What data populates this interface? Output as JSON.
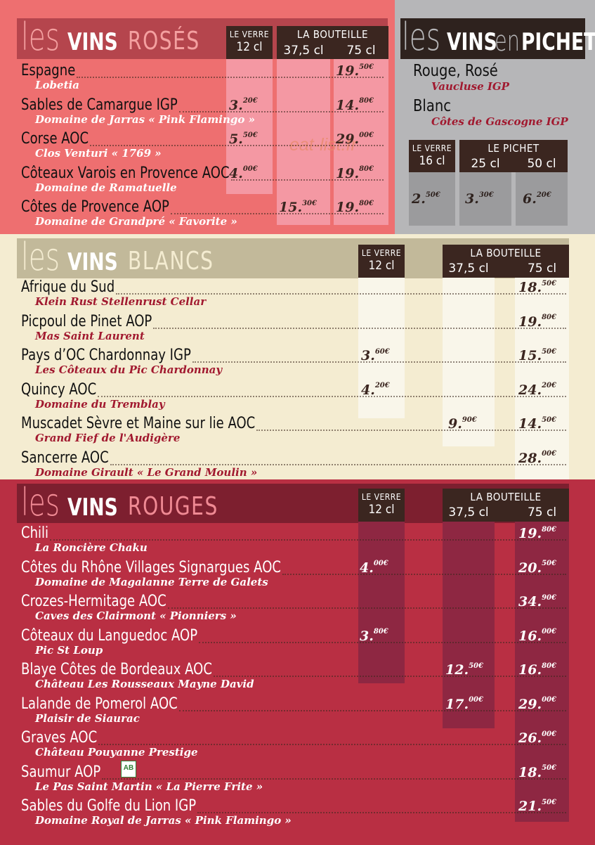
{
  "watermark": "eat-list.fr",
  "roses": {
    "title": {
      "les": "les",
      "mid": "VINS",
      "last": "ROSÉS"
    },
    "headers": {
      "verre": "LE VERRE",
      "verre_size": "12 cl",
      "bouteille": "LA BOUTEILLE",
      "b1": "37,5 cl",
      "b2": "75 cl"
    },
    "items": [
      {
        "name": "Espagne",
        "sub": "Lobetia",
        "verre": "",
        "b375": "",
        "b75": "19.",
        "b75c": "50€"
      },
      {
        "name": "Sables de Camargue IGP",
        "sub": "Domaine de Jarras « Pink Flamingo »",
        "verre": "3.",
        "verrec": "20€",
        "b375": "",
        "b75": "14.",
        "b75c": "80€"
      },
      {
        "name": "Corse AOC",
        "sub": "Clos Venturi « 1769 »",
        "verre": "5.",
        "verrec": "50€",
        "b375": "",
        "b75": "29.",
        "b75c": "00€"
      },
      {
        "name": "Côteaux Varois en Provence AOC",
        "sub": "Domaine de Ramatuelle",
        "verre": "4.",
        "verrec": "00€",
        "b375": "",
        "b75": "19.",
        "b75c": "80€"
      },
      {
        "name": "Côtes de Provence AOP",
        "sub": "Domaine de Grandpré « Favorite »",
        "verre": "",
        "b375": "15.",
        "b375c": "30€",
        "b75": "19.",
        "b75c": "80€"
      }
    ]
  },
  "pichet": {
    "title": {
      "les": "les",
      "mid": "VINS",
      "en": "en",
      "last": "PICHET"
    },
    "wines": [
      {
        "name": "Rouge, Rosé",
        "sub": "Vaucluse IGP"
      },
      {
        "name": "Blanc",
        "sub": "Côtes de Gascogne IGP"
      }
    ],
    "headers": {
      "verre": "LE VERRE",
      "verre_size": "16 cl",
      "pichet": "LE PICHET",
      "p1": "25 cl",
      "p2": "50 cl"
    },
    "prices": [
      {
        "v": "2.",
        "c": "50€"
      },
      {
        "v": "3.",
        "c": "30€"
      },
      {
        "v": "6.",
        "c": "20€"
      }
    ]
  },
  "blancs": {
    "title": {
      "les": "les",
      "mid": "VINS",
      "last": "BLANCS"
    },
    "headers": {
      "verre": "LE VERRE",
      "verre_size": "12 cl",
      "bouteille": "LA BOUTEILLE",
      "b1": "37,5 cl",
      "b2": "75 cl"
    },
    "items": [
      {
        "name": "Afrique du Sud",
        "sub": "Klein Rust Stellenrust Cellar",
        "verre": "",
        "b375": "",
        "b75": "18.",
        "b75c": "50€"
      },
      {
        "name": "Picpoul de Pinet AOP",
        "sub": "Mas Saint Laurent",
        "verre": "",
        "b375": "",
        "b75": "19.",
        "b75c": "80€"
      },
      {
        "name": "Pays d’OC Chardonnay IGP",
        "sub": "Les Côteaux du Pic Chardonnay",
        "verre": "3.",
        "verrec": "60€",
        "b375": "",
        "b75": "15.",
        "b75c": "50€"
      },
      {
        "name": "Quincy AOC",
        "sub": "Domaine du Tremblay",
        "verre": "4.",
        "verrec": "20€",
        "b375": "",
        "b75": "24.",
        "b75c": "20€"
      },
      {
        "name": "Muscadet Sèvre et Maine sur lie AOC",
        "sub": "Grand Fief de l'Audigère",
        "verre": "",
        "b375": "9.",
        "b375c": "90€",
        "b75": "14.",
        "b75c": "50€"
      },
      {
        "name": "Sancerre AOC",
        "sub": "Domaine Girault « Le Grand Moulin »",
        "verre": "",
        "b375": "",
        "b75": "28.",
        "b75c": "00€"
      }
    ]
  },
  "rouges": {
    "title": {
      "les": "les",
      "mid": "VINS",
      "last": "ROUGES"
    },
    "headers": {
      "verre": "LE VERRE",
      "verre_size": "12 cl",
      "bouteille": "LA BOUTEILLE",
      "b1": "37,5 cl",
      "b2": "75 cl"
    },
    "items": [
      {
        "name": "Chili",
        "sub": "La Roncière Chaku",
        "verre": "",
        "b375": "",
        "b75": "19.",
        "b75c": "80€"
      },
      {
        "name": "Côtes du Rhône Villages Signargues AOC",
        "sub": "Domaine de Magalanne Terre de Galets",
        "verre": "4.",
        "verrec": "00€",
        "b375": "",
        "b75": "20.",
        "b75c": "50€"
      },
      {
        "name": "Crozes-Hermitage AOC",
        "sub": "Caves des Clairmont « Pionniers »",
        "verre": "",
        "b375": "",
        "b75": "34.",
        "b75c": "90€"
      },
      {
        "name": "Côteaux du Languedoc AOP",
        "sub": "Pic St Loup",
        "verre": "3.",
        "verrec": "80€",
        "b375": "",
        "b75": "16.",
        "b75c": "00€"
      },
      {
        "name": "Blaye Côtes de Bordeaux AOC",
        "sub": "Château Les Rousseaux Mayne David",
        "verre": "",
        "b375": "12.",
        "b375c": "50€",
        "b75": "16.",
        "b75c": "80€"
      },
      {
        "name": "Lalande de Pomerol AOC",
        "sub": "Plaisir de Siaurac",
        "verre": "",
        "b375": "17.",
        "b375c": "00€",
        "b75": "29.",
        "b75c": "00€"
      },
      {
        "name": "Graves AOC",
        "sub": "Château Pouyanne Prestige",
        "verre": "",
        "b375": "",
        "b75": "26.",
        "b75c": "00€"
      },
      {
        "name": "Saumur AOP",
        "sub": "Le Pas Saint Martin « La Pierre Frite »",
        "verre": "",
        "b375": "",
        "b75": "18.",
        "b75c": "50€",
        "badge": "AB"
      },
      {
        "name": "Sables du Golfe du Lion IGP",
        "sub": "Domaine Royal de Jarras « Pink Flamingo »",
        "verre": "",
        "b375": "",
        "b75": "21.",
        "b75c": "50€"
      }
    ]
  },
  "colors": {
    "rose_bg": "#ee6f70",
    "rose_col": "#f498a3",
    "pichet_bg": "#b6b6b8",
    "pichet_col": "#9b9b9d",
    "blanc_bg": "#f4ecd1",
    "blanc_col": "#f9f6ea",
    "rouge_bg": "#b92f43",
    "rouge_col": "#8e2742",
    "dark": "#3b2620",
    "sub_red": "#a1192f"
  }
}
